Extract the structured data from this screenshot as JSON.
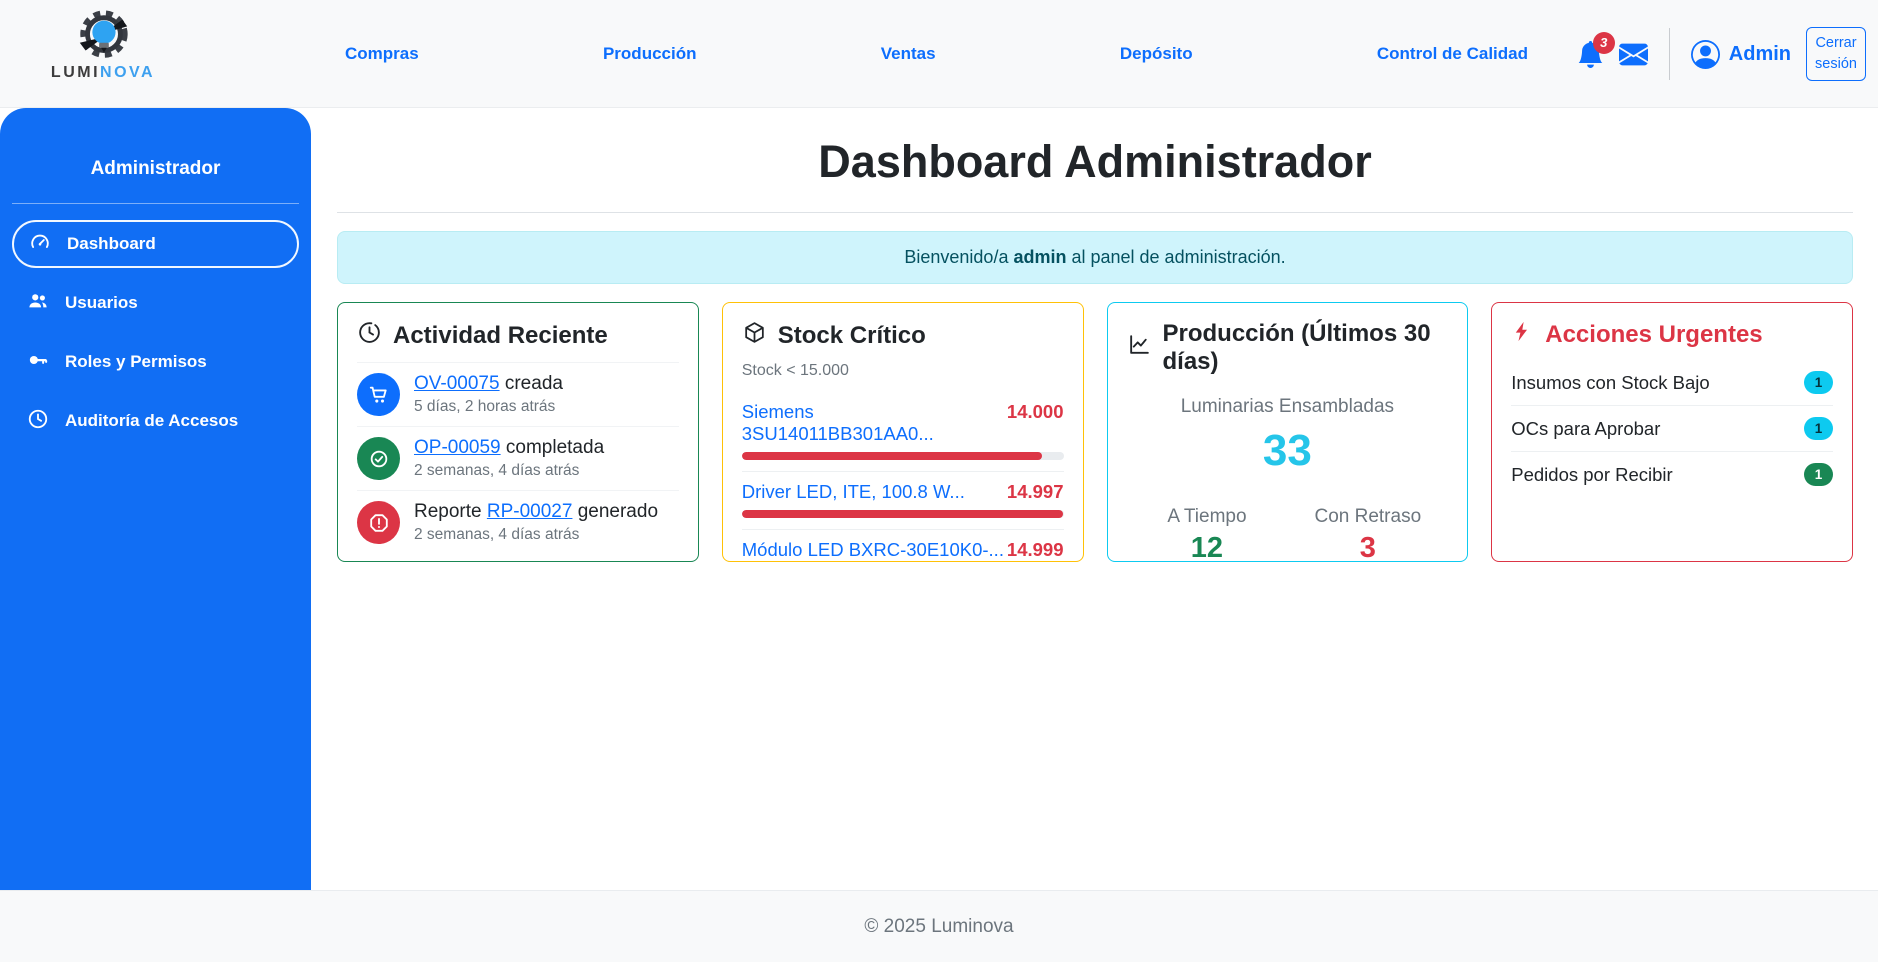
{
  "brand": {
    "name_part1": "LUMI",
    "name_part2": "NOVA"
  },
  "navbar": {
    "links": [
      "Compras",
      "Producción",
      "Ventas",
      "Depósito",
      "Control de Calidad"
    ],
    "notifications_count": "3",
    "user_label": "Admin",
    "logout_label": "Cerrar sesión"
  },
  "sidebar": {
    "title": "Administrador",
    "items": [
      {
        "label": "Dashboard",
        "icon": "speedometer-icon",
        "active": true
      },
      {
        "label": "Usuarios",
        "icon": "people-icon",
        "active": false
      },
      {
        "label": "Roles y Permisos",
        "icon": "key-icon",
        "active": false
      },
      {
        "label": "Auditoría de Accesos",
        "icon": "clock-icon",
        "active": false
      }
    ]
  },
  "main": {
    "title": "Dashboard Administrador",
    "welcome": {
      "prefix": "Bienvenido/a",
      "user": "admin",
      "suffix": "al panel de administración."
    },
    "cards": {
      "activity": {
        "title": "Actividad Reciente",
        "icon": "clock-history-icon",
        "items": [
          {
            "pre": "",
            "link": "OV-00075",
            "post": " creada",
            "time": "5 días, 2 horas atrás",
            "icon": "cart-icon",
            "color": "#0d6efd"
          },
          {
            "pre": "",
            "link": "OP-00059",
            "post": " completada",
            "time": "2 semanas, 4 días atrás",
            "icon": "check-circle-icon",
            "color": "#198754"
          },
          {
            "pre": "Reporte ",
            "link": "RP-00027",
            "post": " generado",
            "time": "2 semanas, 4 días atrás",
            "icon": "alert-octagon-icon",
            "color": "#dc3545"
          }
        ]
      },
      "stock": {
        "title": "Stock Crítico",
        "icon": "box-icon",
        "subtitle": "Stock < 15.000",
        "threshold": 15000,
        "items": [
          {
            "name": "Siemens 3SU14011BB301AA0...",
            "value": "14.000",
            "pct": 93.3
          },
          {
            "name": "Driver LED, ITE, 100.8 W...",
            "value": "14.997",
            "pct": 99.98
          },
          {
            "name": "Módulo LED BXRC-30E10K0-...",
            "value": "14.999",
            "pct": 99.99
          }
        ]
      },
      "production": {
        "title": "Producción (Últimos 30 días)",
        "icon": "line-chart-icon",
        "metric_label": "Luminarias Ensambladas",
        "metric_value": "33",
        "col1_label": "A Tiempo",
        "col1_value": "12",
        "col2_label": "Con Retraso",
        "col2_value": "3"
      },
      "urgent": {
        "title": "Acciones Urgentes",
        "icon": "bolt-icon",
        "items": [
          {
            "label": "Insumos con Stock Bajo",
            "badge": "1",
            "badge_color": "#0dcaf0"
          },
          {
            "label": "OCs para Aprobar",
            "badge": "1",
            "badge_color": "#0dcaf0"
          },
          {
            "label": "Pedidos por Recibir",
            "badge": "1",
            "badge_color": "#198754"
          }
        ]
      }
    }
  },
  "footer": {
    "text": "© 2025 Luminova"
  },
  "colors": {
    "sidebar": "#116ef4",
    "link_blue": "#0d6efd",
    "success_green": "#198754",
    "danger_red": "#dc3545",
    "warning_yellow": "#ffc107",
    "info_cyan": "#0dcaf0",
    "alert_bg": "#cff4fc",
    "alert_text": "#055160",
    "muted": "#6c757d",
    "navbar_bg": "#f8f9fa"
  }
}
